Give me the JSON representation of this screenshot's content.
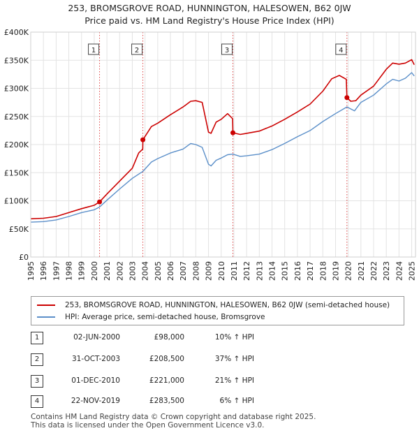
{
  "chart_data": {
    "type": "line",
    "title": "253, BROMSGROVE ROAD, HUNNINGTON, HALESOWEN, B62 0JW",
    "subtitle": "Price paid vs. HM Land Registry's House Price Index (HPI)",
    "x_ticks": [
      "1995",
      "1996",
      "1997",
      "1998",
      "1999",
      "2000",
      "2001",
      "2002",
      "2003",
      "2004",
      "2005",
      "2006",
      "2007",
      "2008",
      "2009",
      "2010",
      "2011",
      "2012",
      "2013",
      "2014",
      "2015",
      "2016",
      "2017",
      "2018",
      "2019",
      "2020",
      "2021",
      "2022",
      "2023",
      "2024",
      "2025"
    ],
    "y_ticks": [
      "£0",
      "£50K",
      "£100K",
      "£150K",
      "£200K",
      "£250K",
      "£300K",
      "£350K",
      "£400K"
    ],
    "ylim": [
      0,
      400000
    ],
    "xlim": [
      1995,
      2025.3
    ],
    "grid": true,
    "series": [
      {
        "name": "253, BROMSGROVE ROAD, HUNNINGTON, HALESOWEN, B62 0JW (semi-detached house)",
        "color": "#cc0000",
        "x": [
          1995.0,
          1996.0,
          1997.0,
          1998.0,
          1999.0,
          2000.0,
          2000.42,
          2001.0,
          2002.0,
          2003.0,
          2003.5,
          2003.82,
          2003.83,
          2004.5,
          2005.0,
          2006.0,
          2007.0,
          2007.6,
          2008.0,
          2008.5,
          2009.0,
          2009.2,
          2009.6,
          2010.0,
          2010.5,
          2010.9,
          2010.92,
          2011.5,
          2012.0,
          2013.0,
          2014.0,
          2015.0,
          2016.0,
          2017.0,
          2018.0,
          2018.7,
          2019.3,
          2019.85,
          2019.9,
          2020.2,
          2020.6,
          2021.0,
          2022.0,
          2023.0,
          2023.5,
          2024.0,
          2024.5,
          2025.0,
          2025.2
        ],
        "values": [
          68000,
          69000,
          72000,
          79000,
          86000,
          92000,
          98000,
          112000,
          135000,
          158000,
          185000,
          192000,
          208500,
          232000,
          238000,
          253000,
          267000,
          277000,
          278000,
          275000,
          222000,
          220000,
          240000,
          245000,
          255000,
          246000,
          221000,
          218000,
          220000,
          224000,
          233000,
          245000,
          258000,
          272000,
          295000,
          317000,
          323000,
          316000,
          283500,
          277000,
          278000,
          288000,
          304000,
          334000,
          345000,
          343000,
          345000,
          351000,
          342000
        ]
      },
      {
        "name": "HPI: Average price, semi-detached house, Bromsgrove",
        "color": "#5b8fc9",
        "x": [
          1995.0,
          1996.0,
          1997.0,
          1998.0,
          1999.0,
          2000.0,
          2000.42,
          2001.0,
          2002.0,
          2003.0,
          2003.82,
          2004.5,
          2005.0,
          2006.0,
          2007.0,
          2007.6,
          2008.0,
          2008.5,
          2009.0,
          2009.2,
          2009.6,
          2010.0,
          2010.5,
          2010.92,
          2011.5,
          2012.0,
          2013.0,
          2014.0,
          2015.0,
          2016.0,
          2017.0,
          2018.0,
          2019.0,
          2019.9,
          2020.5,
          2021.0,
          2022.0,
          2023.0,
          2023.5,
          2024.0,
          2024.5,
          2025.0,
          2025.2
        ],
        "values": [
          62000,
          63000,
          66000,
          72000,
          79000,
          84000,
          89000,
          101000,
          121000,
          140000,
          152000,
          169000,
          175000,
          185000,
          192000,
          202000,
          200000,
          195000,
          165000,
          162000,
          172000,
          176000,
          182000,
          183000,
          179000,
          180000,
          183000,
          191000,
          202000,
          214000,
          225000,
          241000,
          255000,
          267000,
          260000,
          275000,
          288000,
          308000,
          316000,
          313000,
          318000,
          328000,
          322000
        ]
      }
    ],
    "sales": [
      {
        "label": "1",
        "year": 2000.42,
        "price": 98000
      },
      {
        "label": "2",
        "year": 2003.83,
        "price": 208500
      },
      {
        "label": "3",
        "year": 2010.92,
        "price": 221000
      },
      {
        "label": "4",
        "year": 2019.9,
        "price": 283500
      }
    ]
  },
  "legend": {
    "property_label": "253, BROMSGROVE ROAD, HUNNINGTON, HALESOWEN, B62 0JW (semi-detached house)",
    "hpi_label": "HPI: Average price, semi-detached house, Bromsgrove"
  },
  "transactions": [
    {
      "num": "1",
      "date": "02-JUN-2000",
      "price": "£98,000",
      "hpi": "10% ↑ HPI"
    },
    {
      "num": "2",
      "date": "31-OCT-2003",
      "price": "£208,500",
      "hpi": "37% ↑ HPI"
    },
    {
      "num": "3",
      "date": "01-DEC-2010",
      "price": "£221,000",
      "hpi": "21% ↑ HPI"
    },
    {
      "num": "4",
      "date": "22-NOV-2019",
      "price": "£283,500",
      "hpi": "6% ↑ HPI"
    }
  ],
  "footer": {
    "line1": "Contains HM Land Registry data © Crown copyright and database right 2025.",
    "line2": "This data is licensed under the Open Government Licence v3.0."
  }
}
